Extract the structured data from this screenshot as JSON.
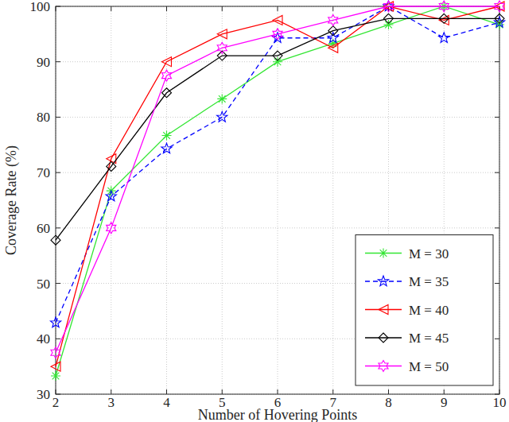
{
  "chart_data": {
    "type": "line",
    "x_label": "Number of Hovering Points",
    "y_label": "Coverage Rate (%)",
    "x": [
      2,
      3,
      4,
      5,
      6,
      7,
      8,
      9,
      10
    ],
    "xlim": [
      2,
      10
    ],
    "xticks": [
      2,
      3,
      4,
      5,
      6,
      7,
      8,
      9,
      10
    ],
    "ylim": [
      30,
      100
    ],
    "yticks": [
      30,
      40,
      50,
      60,
      70,
      80,
      90,
      100
    ],
    "grid": true,
    "legend": "lower right",
    "series": [
      {
        "name": "M = 30",
        "color": "#33e633",
        "marker": "asterisk",
        "line_style": "solid",
        "values": [
          33.3,
          66.7,
          76.7,
          83.3,
          90,
          93.3,
          96.7,
          100,
          96.7
        ]
      },
      {
        "name": "M = 35",
        "color": "#0000ff",
        "marker": "pentagram",
        "line_style": "dashed",
        "values": [
          42.9,
          65.7,
          74.3,
          80,
          94.3,
          94.3,
          100,
          94.3,
          97.1
        ]
      },
      {
        "name": "M = 40",
        "color": "#ff0000",
        "marker": "triangle-left",
        "line_style": "solid",
        "values": [
          35,
          72.5,
          90,
          95,
          97.5,
          92.5,
          100,
          97.5,
          100
        ]
      },
      {
        "name": "M = 45",
        "color": "#000000",
        "marker": "diamond",
        "line_style": "solid",
        "values": [
          57.8,
          71.1,
          84.4,
          91.1,
          91.1,
          95.6,
          97.8,
          97.8,
          97.8
        ]
      },
      {
        "name": "M = 50",
        "color": "#ff00ff",
        "marker": "hexagram",
        "line_style": "solid",
        "values": [
          37.5,
          60,
          87.5,
          92.5,
          95,
          97.5,
          100,
          100,
          100
        ]
      }
    ]
  }
}
